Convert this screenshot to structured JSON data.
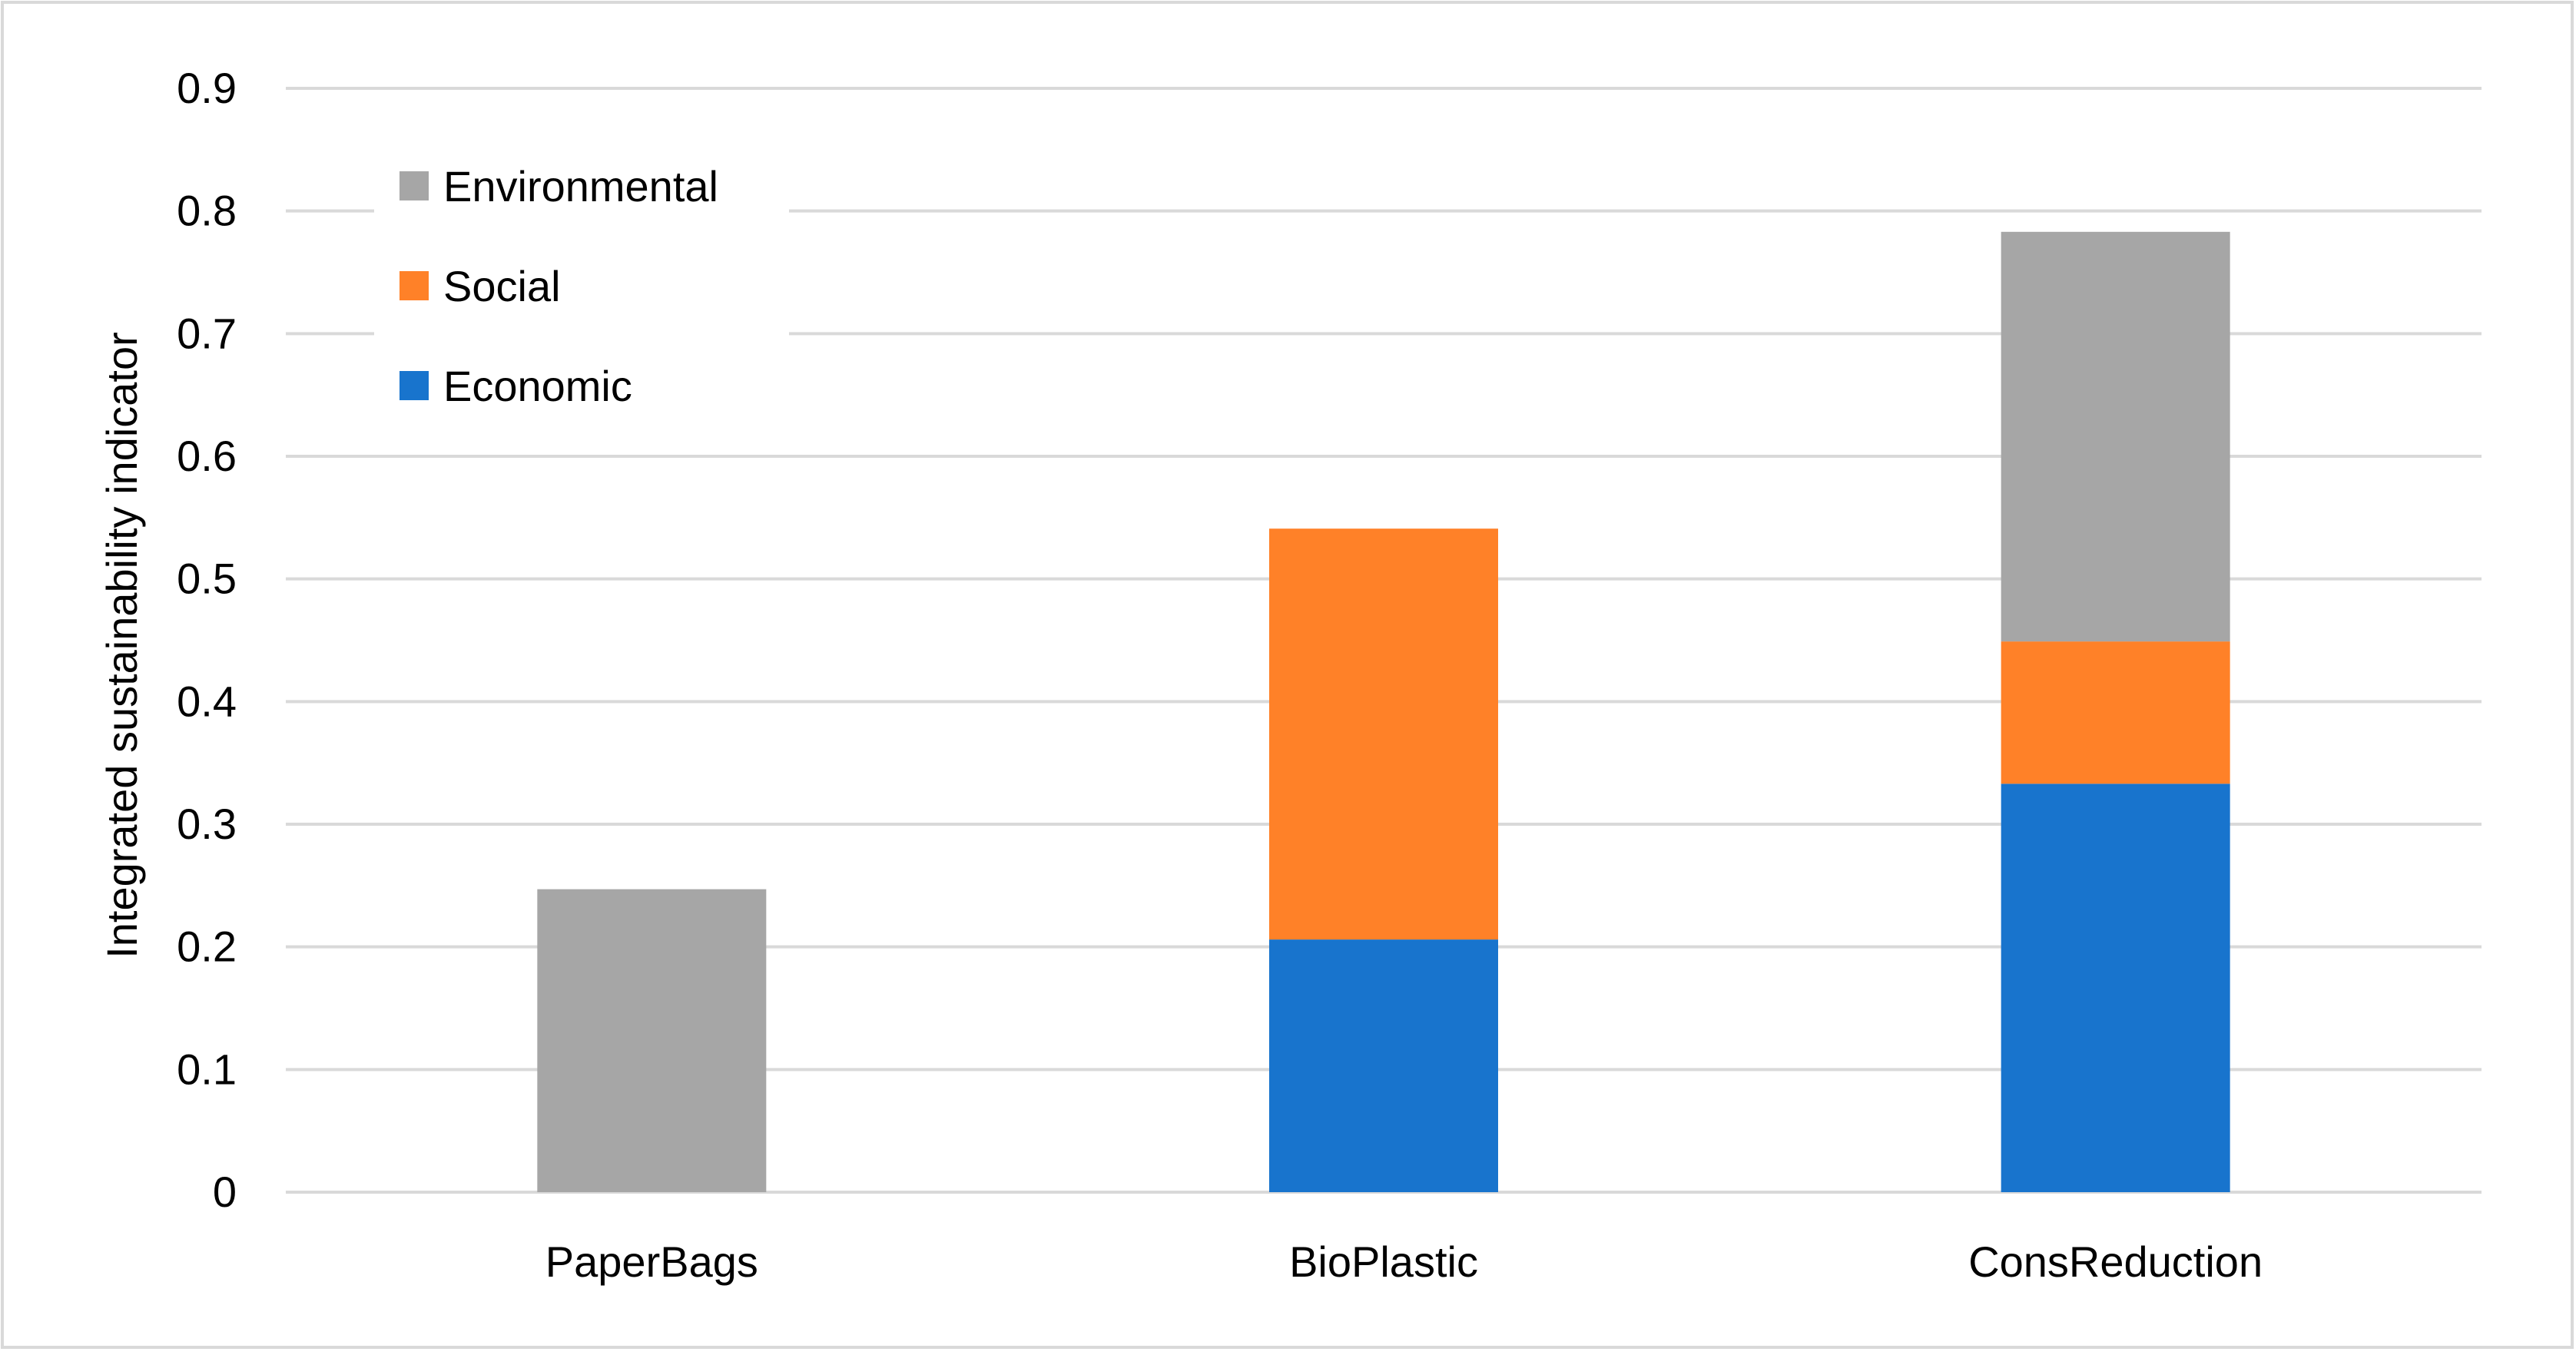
{
  "chart_data": {
    "type": "bar",
    "stacked": true,
    "title": "",
    "xlabel": "",
    "ylabel": "Integrated sustainability indicator",
    "categories": [
      "PaperBags",
      "BioPlastic",
      "ConsReduction"
    ],
    "series": [
      {
        "name": "Economic",
        "color": "#1874CD",
        "values": [
          0,
          0.206,
          0.333
        ]
      },
      {
        "name": "Social",
        "color": "#FF8128",
        "values": [
          0,
          0.335,
          0.116
        ]
      },
      {
        "name": "Environmental",
        "color": "#A6A6A6",
        "values": [
          0.247,
          0,
          0.334
        ]
      }
    ],
    "ylim": [
      0,
      0.9
    ],
    "yticks": [
      "0",
      "0.1",
      "0.2",
      "0.3",
      "0.4",
      "0.5",
      "0.6",
      "0.7",
      "0.8",
      "0.9"
    ],
    "grid": true,
    "legend": {
      "position": "top-left",
      "order": [
        "Environmental",
        "Social",
        "Economic"
      ]
    },
    "gridline_color": "#D9D9D9",
    "border_color": "#D9D9D9"
  }
}
